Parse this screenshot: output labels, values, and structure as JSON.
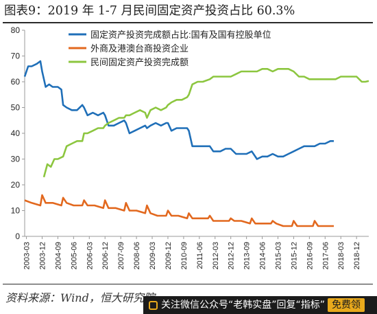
{
  "header": {
    "title": "图表9：2019 年 1-7 月民间固定资产投资占比 60.3%"
  },
  "footer": {
    "source": "资料来源：Wind，恒大研究院"
  },
  "banner": {
    "text": "关注微信公众号“老韩实盘”回复",
    "keyword": "“指标”",
    "button": "免费领"
  },
  "colors": {
    "state": "#1f6fb8",
    "foreign": "#e2681e",
    "private": "#8cc63f",
    "axis": "#999999",
    "text": "#222222"
  },
  "chart_data": {
    "type": "line",
    "title": "",
    "xlabel": "",
    "ylabel": "",
    "ylim": [
      0,
      80
    ],
    "yticks": [
      0,
      10,
      20,
      30,
      40,
      50,
      60,
      70,
      80
    ],
    "xlim": [
      "2003-02",
      "2019-07"
    ],
    "xticks": [
      "2003-03",
      "2003-12",
      "2004-09",
      "2005-06",
      "2006-03",
      "2006-12",
      "2007-09",
      "2008-06",
      "2009-03",
      "2009-12",
      "2010-09",
      "2011-06",
      "2012-03",
      "2012-12",
      "2013-09",
      "2014-06",
      "2015-03",
      "2015-12",
      "2016-09",
      "2017-06",
      "2018-03",
      "2018-12"
    ],
    "legend_position": "top-center",
    "series": [
      {
        "name": "固定资产投资完成额占比:国有及国有控股单位",
        "color": "#1f6fb8",
        "points": [
          [
            "2003-02",
            62
          ],
          [
            "2003-04",
            66
          ],
          [
            "2003-06",
            66
          ],
          [
            "2003-09",
            67
          ],
          [
            "2003-11",
            68
          ],
          [
            "2003-12",
            64
          ],
          [
            "2004-02",
            58
          ],
          [
            "2004-04",
            59
          ],
          [
            "2004-06",
            58
          ],
          [
            "2004-09",
            58
          ],
          [
            "2004-11",
            57
          ],
          [
            "2004-12",
            51
          ],
          [
            "2005-02",
            50
          ],
          [
            "2005-05",
            49
          ],
          [
            "2005-08",
            49
          ],
          [
            "2005-11",
            51
          ],
          [
            "2005-12",
            50
          ],
          [
            "2006-02",
            47
          ],
          [
            "2006-05",
            48
          ],
          [
            "2006-08",
            47
          ],
          [
            "2006-11",
            48
          ],
          [
            "2006-12",
            47
          ],
          [
            "2007-02",
            43
          ],
          [
            "2007-05",
            43
          ],
          [
            "2007-08",
            44
          ],
          [
            "2007-11",
            45
          ],
          [
            "2007-12",
            44
          ],
          [
            "2008-02",
            40
          ],
          [
            "2008-05",
            41
          ],
          [
            "2008-08",
            42
          ],
          [
            "2008-11",
            43
          ],
          [
            "2008-12",
            42
          ],
          [
            "2009-02",
            43
          ],
          [
            "2009-05",
            44
          ],
          [
            "2009-08",
            43
          ],
          [
            "2009-11",
            44
          ],
          [
            "2009-12",
            44
          ],
          [
            "2010-02",
            41
          ],
          [
            "2010-05",
            42
          ],
          [
            "2010-08",
            42
          ],
          [
            "2010-11",
            42
          ],
          [
            "2010-12",
            41
          ],
          [
            "2011-02",
            35
          ],
          [
            "2011-05",
            35
          ],
          [
            "2011-08",
            35
          ],
          [
            "2011-12",
            35
          ],
          [
            "2012-02",
            33
          ],
          [
            "2012-06",
            33
          ],
          [
            "2012-09",
            34
          ],
          [
            "2012-12",
            34
          ],
          [
            "2013-03",
            32
          ],
          [
            "2013-06",
            32
          ],
          [
            "2013-09",
            32
          ],
          [
            "2013-12",
            33
          ],
          [
            "2014-03",
            30
          ],
          [
            "2014-06",
            31
          ],
          [
            "2014-09",
            31
          ],
          [
            "2014-12",
            32
          ],
          [
            "2015-03",
            31
          ],
          [
            "2015-06",
            31
          ],
          [
            "2015-09",
            32
          ],
          [
            "2015-12",
            33
          ],
          [
            "2016-03",
            34
          ],
          [
            "2016-06",
            35
          ],
          [
            "2016-09",
            35
          ],
          [
            "2016-12",
            35
          ],
          [
            "2017-03",
            36
          ],
          [
            "2017-06",
            36
          ],
          [
            "2017-09",
            37
          ],
          [
            "2017-11",
            37
          ]
        ]
      },
      {
        "name": "外商及港澳台商投资企业",
        "color": "#e2681e",
        "points": [
          [
            "2003-02",
            14
          ],
          [
            "2003-06",
            13
          ],
          [
            "2003-11",
            12
          ],
          [
            "2003-12",
            16
          ],
          [
            "2004-02",
            13
          ],
          [
            "2004-06",
            13
          ],
          [
            "2004-11",
            12
          ],
          [
            "2004-12",
            15
          ],
          [
            "2005-02",
            13
          ],
          [
            "2005-06",
            12
          ],
          [
            "2005-11",
            12
          ],
          [
            "2005-12",
            14
          ],
          [
            "2006-02",
            12
          ],
          [
            "2006-06",
            12
          ],
          [
            "2006-11",
            11
          ],
          [
            "2006-12",
            14
          ],
          [
            "2007-02",
            11
          ],
          [
            "2007-06",
            11
          ],
          [
            "2007-11",
            10
          ],
          [
            "2007-12",
            13
          ],
          [
            "2008-02",
            10
          ],
          [
            "2008-06",
            10
          ],
          [
            "2008-11",
            9
          ],
          [
            "2008-12",
            12
          ],
          [
            "2009-02",
            9
          ],
          [
            "2009-06",
            8
          ],
          [
            "2009-11",
            8
          ],
          [
            "2009-12",
            10
          ],
          [
            "2010-02",
            8
          ],
          [
            "2010-06",
            8
          ],
          [
            "2010-11",
            7
          ],
          [
            "2010-12",
            9
          ],
          [
            "2011-02",
            7
          ],
          [
            "2011-06",
            7
          ],
          [
            "2011-11",
            7
          ],
          [
            "2011-12",
            8
          ],
          [
            "2012-02",
            6
          ],
          [
            "2012-06",
            6
          ],
          [
            "2012-11",
            6
          ],
          [
            "2012-12",
            7
          ],
          [
            "2013-02",
            6
          ],
          [
            "2013-06",
            6
          ],
          [
            "2013-11",
            5
          ],
          [
            "2013-12",
            7
          ],
          [
            "2014-02",
            5
          ],
          [
            "2014-06",
            5
          ],
          [
            "2014-11",
            5
          ],
          [
            "2014-12",
            6
          ],
          [
            "2015-02",
            5
          ],
          [
            "2015-06",
            4
          ],
          [
            "2015-11",
            4
          ],
          [
            "2015-12",
            6
          ],
          [
            "2016-02",
            4
          ],
          [
            "2016-06",
            4
          ],
          [
            "2016-11",
            4
          ],
          [
            "2016-12",
            6
          ],
          [
            "2017-02",
            4
          ],
          [
            "2017-06",
            4
          ],
          [
            "2017-11",
            4
          ]
        ]
      },
      {
        "name": "民间固定资产投资完成额",
        "color": "#8cc63f",
        "points": [
          [
            "2004-01",
            23
          ],
          [
            "2004-03",
            28
          ],
          [
            "2004-05",
            27
          ],
          [
            "2004-07",
            30
          ],
          [
            "2004-09",
            30
          ],
          [
            "2004-12",
            31
          ],
          [
            "2005-02",
            35
          ],
          [
            "2005-05",
            36
          ],
          [
            "2005-08",
            37
          ],
          [
            "2005-11",
            37
          ],
          [
            "2005-12",
            40
          ],
          [
            "2006-02",
            40
          ],
          [
            "2006-05",
            41
          ],
          [
            "2006-08",
            42
          ],
          [
            "2006-11",
            42
          ],
          [
            "2006-12",
            43
          ],
          [
            "2007-02",
            44
          ],
          [
            "2007-05",
            45
          ],
          [
            "2007-08",
            46
          ],
          [
            "2007-11",
            46
          ],
          [
            "2007-12",
            47
          ],
          [
            "2008-02",
            47
          ],
          [
            "2008-05",
            48
          ],
          [
            "2008-08",
            49
          ],
          [
            "2008-11",
            48
          ],
          [
            "2008-12",
            46
          ],
          [
            "2009-02",
            49
          ],
          [
            "2009-05",
            50
          ],
          [
            "2009-08",
            49
          ],
          [
            "2009-11",
            50
          ],
          [
            "2009-12",
            51
          ],
          [
            "2010-02",
            52
          ],
          [
            "2010-05",
            53
          ],
          [
            "2010-08",
            53
          ],
          [
            "2010-11",
            54
          ],
          [
            "2010-12",
            55
          ],
          [
            "2011-02",
            59
          ],
          [
            "2011-05",
            60
          ],
          [
            "2011-08",
            60
          ],
          [
            "2011-12",
            61
          ],
          [
            "2012-02",
            62
          ],
          [
            "2012-06",
            62
          ],
          [
            "2012-09",
            62
          ],
          [
            "2012-12",
            62
          ],
          [
            "2013-03",
            63
          ],
          [
            "2013-06",
            64
          ],
          [
            "2013-09",
            64
          ],
          [
            "2013-12",
            64
          ],
          [
            "2014-03",
            64
          ],
          [
            "2014-06",
            65
          ],
          [
            "2014-09",
            65
          ],
          [
            "2014-12",
            64
          ],
          [
            "2015-03",
            65
          ],
          [
            "2015-06",
            65
          ],
          [
            "2015-09",
            65
          ],
          [
            "2015-12",
            64
          ],
          [
            "2016-03",
            62
          ],
          [
            "2016-06",
            62
          ],
          [
            "2016-09",
            61
          ],
          [
            "2016-12",
            61
          ],
          [
            "2017-03",
            61
          ],
          [
            "2017-06",
            61
          ],
          [
            "2017-09",
            61
          ],
          [
            "2017-12",
            61
          ],
          [
            "2018-03",
            62
          ],
          [
            "2018-06",
            62
          ],
          [
            "2018-09",
            62
          ],
          [
            "2018-12",
            62
          ],
          [
            "2019-03",
            60
          ],
          [
            "2019-05",
            60
          ],
          [
            "2019-07",
            60.3
          ]
        ]
      }
    ]
  }
}
